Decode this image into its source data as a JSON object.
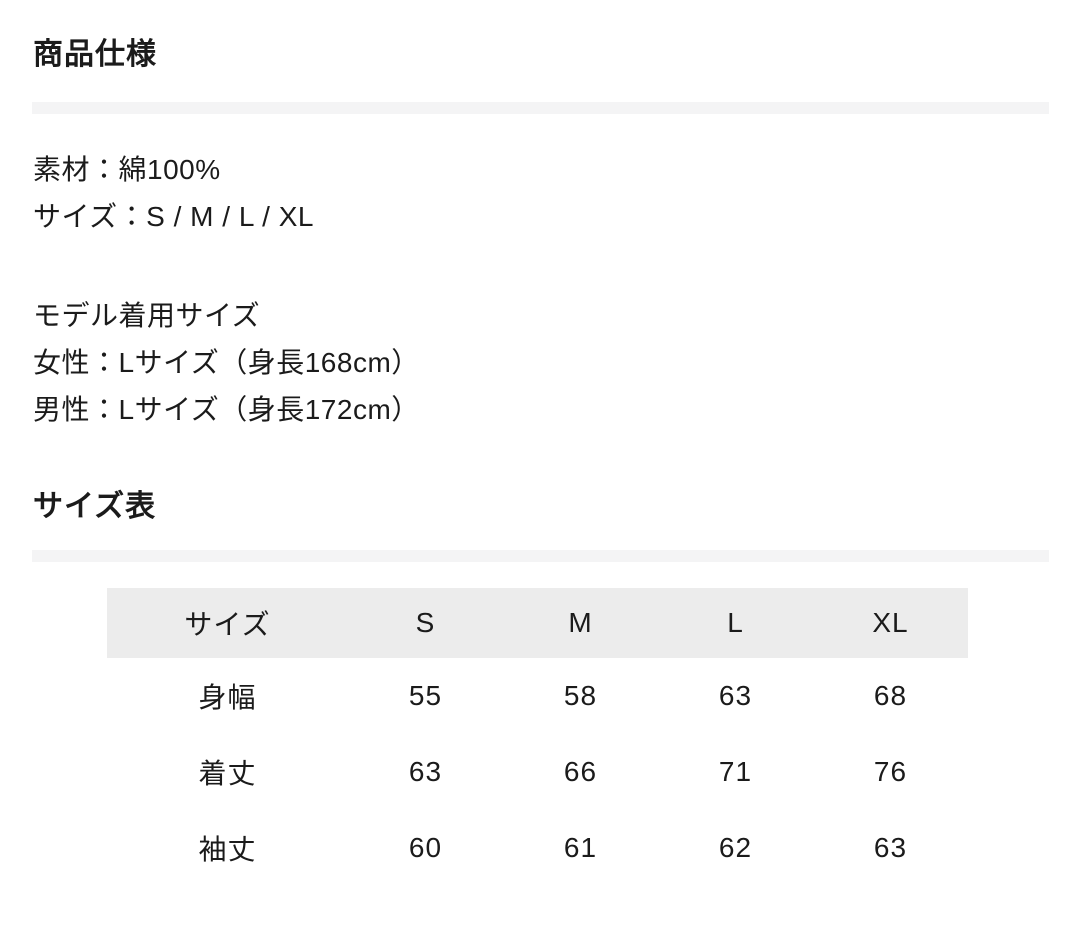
{
  "colors": {
    "text": "#1b1b1b",
    "divider": "#f4f4f5",
    "table_header_bg": "#ececec"
  },
  "product_spec": {
    "title": "商品仕様",
    "material_line": "素材：綿100%",
    "size_options_line": "サイズ：S / M / L / XL",
    "model_size_heading": "モデル着用サイズ",
    "model_female_line": "女性：Lサイズ（身長168cm）",
    "model_male_line": "男性：Lサイズ（身長172cm）"
  },
  "size_chart": {
    "title": "サイズ表",
    "table": {
      "header": [
        "サイズ",
        "S",
        "M",
        "L",
        "XL"
      ],
      "rows": [
        {
          "label": "身幅",
          "values": [
            "55",
            "58",
            "63",
            "68"
          ]
        },
        {
          "label": "着丈",
          "values": [
            "63",
            "66",
            "71",
            "76"
          ]
        },
        {
          "label": "袖丈",
          "values": [
            "60",
            "61",
            "62",
            "63"
          ]
        }
      ]
    }
  }
}
